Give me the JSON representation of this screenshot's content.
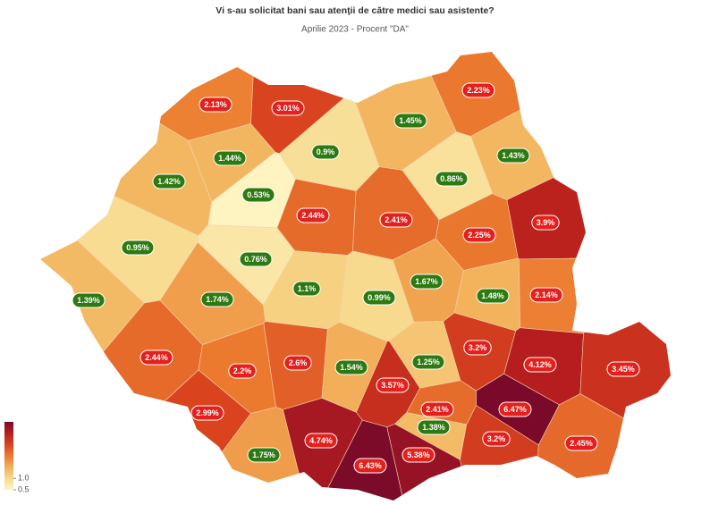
{
  "chart_data": {
    "type": "choropleth",
    "title": "Vi s-au solicitat bani sau atenţii de către medici sau asistente?",
    "subtitle": "Aprilie 2023 - Procent \"DA\"",
    "values": [
      2.13,
      3.01,
      2.23,
      1.45,
      1.44,
      0.9,
      1.43,
      1.42,
      0.53,
      0.86,
      2.44,
      2.41,
      3.9,
      2.25,
      0.95,
      0.76,
      1.67,
      1.1,
      0.99,
      1.48,
      2.14,
      1.39,
      1.74,
      3.2,
      2.44,
      2.2,
      2.6,
      1.54,
      1.25,
      4.12,
      3.45,
      3.57,
      2.41,
      6.47,
      2.99,
      1.38,
      3.2,
      2.45,
      4.74,
      5.38,
      1.75,
      6.43
    ],
    "value_labels": [
      "2.13%",
      "3.01%",
      "2.23%",
      "1.45%",
      "1.44%",
      "0.9%",
      "1.43%",
      "1.42%",
      "0.53%",
      "0.86%",
      "2.44%",
      "2.41%",
      "3.9%",
      "2.25%",
      "0.95%",
      "0.76%",
      "1.67%",
      "1.1%",
      "0.99%",
      "1.48%",
      "2.14%",
      "1.39%",
      "1.74%",
      "3.2%",
      "2.44%",
      "2.2%",
      "2.6%",
      "1.54%",
      "1.25%",
      "4.12%",
      "3.45%",
      "3.57%",
      "2.41%",
      "6.47%",
      "2.99%",
      "1.38%",
      "3.2%",
      "2.45%",
      "4.74%",
      "5.38%",
      "1.75%",
      "6.43%"
    ],
    "colorscale": [
      {
        "value": 0.5,
        "color": "#fdf6c4"
      },
      {
        "value": 1,
        "color": "#f7d98c"
      },
      {
        "value": 1.5,
        "color": "#f2b15a"
      },
      {
        "value": 2.2,
        "color": "#eb7a2f"
      },
      {
        "value": 3,
        "color": "#d9431f"
      },
      {
        "value": 4,
        "color": "#b81e1e"
      },
      {
        "value": 6.5,
        "color": "#7a0a2a"
      }
    ],
    "cticks": [
      {
        "value": 1,
        "label": "1.0"
      },
      {
        "value": 0.5,
        "label": "0.5"
      }
    ],
    "badge_colors": {
      "low": "#2e7a12",
      "high": "#e3201b"
    }
  }
}
